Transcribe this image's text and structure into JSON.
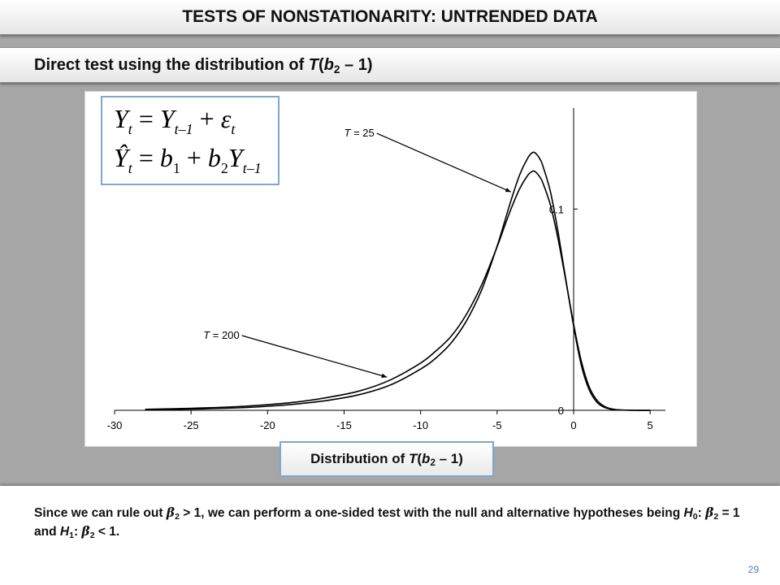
{
  "header": {
    "title": "TESTS OF NONSTATIONARITY: UNTRENDED DATA"
  },
  "subheader": {
    "prefix": "Direct test using the distribution of ",
    "T": "T",
    "paren_open": "(",
    "b": "b",
    "sub": "2",
    "rest": " – 1)"
  },
  "equations": {
    "eq1": {
      "Y": "Y",
      "t": "t",
      "eq": " = ",
      "Y2": "Y",
      "sub2": "t–1",
      "plus": " + ",
      "eps": "ε",
      "sub3": "t"
    },
    "eq2": {
      "Yhat": "Ŷ",
      "t": "t",
      "eq": " = ",
      "b1": "b",
      "s1": "1",
      "plus": " + ",
      "b2": "b",
      "s2": "2",
      "Y": "Y",
      "sub": "t–1"
    }
  },
  "distribution_label": {
    "prefix": "Distribution of ",
    "T": "T",
    "open": "(",
    "b": "b",
    "sub": "2",
    "rest": " – 1)"
  },
  "footer": {
    "p1": "Since we can rule out ",
    "beta1": "β",
    "s1": "2",
    "p2": " > 1, we can perform a one-sided test with the null and alternative hypotheses being ",
    "H0": "H",
    "s0": "0",
    "p3": ": ",
    "beta2": "β",
    "s2": "2",
    "p4": " = 1 and ",
    "H1": "H",
    "sH1": "1",
    "p5": ": ",
    "beta3": "β",
    "s3": "2",
    "p6": " < 1."
  },
  "page_number": "29",
  "chart_data": {
    "type": "line",
    "title": "",
    "xlabel": "",
    "ylabel": "",
    "xlim": [
      -30,
      6
    ],
    "ylim": [
      0,
      0.155
    ],
    "x_ticks": [
      -30,
      -25,
      -20,
      -15,
      -10,
      -5,
      0,
      5
    ],
    "x_tick_labels": [
      "-30",
      "-25",
      "-20",
      "-15",
      "-10",
      "-5",
      "0",
      "5"
    ],
    "y_ticks": [
      0,
      0.1
    ],
    "y_tick_labels": [
      "0",
      "0.1"
    ],
    "grid": false,
    "series": [
      {
        "name": "T = 25",
        "x": [
          -28,
          -25,
          -22,
          -20,
          -18,
          -16,
          -14,
          -12,
          -10,
          -9,
          -8,
          -7,
          -6,
          -5,
          -4.5,
          -4,
          -3.5,
          -3,
          -2.7,
          -2.5,
          -2.2,
          -2,
          -1.5,
          -1,
          -0.5,
          0,
          0.5,
          1,
          1.5,
          2,
          2.5,
          3,
          4,
          5
        ],
        "y": [
          0.0003,
          0.0006,
          0.0012,
          0.002,
          0.0032,
          0.005,
          0.0078,
          0.0125,
          0.0205,
          0.026,
          0.0335,
          0.0445,
          0.06,
          0.0815,
          0.094,
          0.1065,
          0.1175,
          0.1253,
          0.128,
          0.1278,
          0.1248,
          0.1212,
          0.108,
          0.0878,
          0.0645,
          0.0418,
          0.0225,
          0.0105,
          0.0042,
          0.0015,
          0.0005,
          0.0002,
          0,
          0
        ]
      },
      {
        "name": "T = 200",
        "x": [
          -28,
          -25,
          -22,
          -20,
          -18,
          -16,
          -14,
          -12,
          -10,
          -9,
          -8,
          -7,
          -6,
          -5,
          -4.5,
          -4,
          -3.5,
          -3,
          -2.7,
          -2.5,
          -2.2,
          -2,
          -1.5,
          -1,
          -0.5,
          0,
          0.5,
          1,
          1.5,
          2,
          2.5,
          3,
          4,
          5
        ],
        "y": [
          0.0005,
          0.001,
          0.0018,
          0.0028,
          0.0042,
          0.0065,
          0.0096,
          0.015,
          0.0235,
          0.0295,
          0.0368,
          0.0478,
          0.0625,
          0.0812,
          0.0918,
          0.1018,
          0.1105,
          0.1167,
          0.1187,
          0.1185,
          0.1158,
          0.1128,
          0.1015,
          0.0845,
          0.064,
          0.0428,
          0.0245,
          0.012,
          0.0052,
          0.002,
          0.0007,
          0.0002,
          0,
          0
        ]
      }
    ],
    "annotations": [
      {
        "text_T": "T",
        "text_rest": " = 25",
        "series": "T = 25",
        "label_x": -15.0,
        "label_y": 0.136,
        "arrow_to_x": -4.1,
        "arrow_to_y": 0.1085
      },
      {
        "text_T": "T",
        "text_rest": " = 200",
        "series": "T = 200",
        "label_x": -24.2,
        "label_y": 0.0355,
        "arrow_to_x": -12.2,
        "arrow_to_y": 0.0165
      }
    ]
  }
}
